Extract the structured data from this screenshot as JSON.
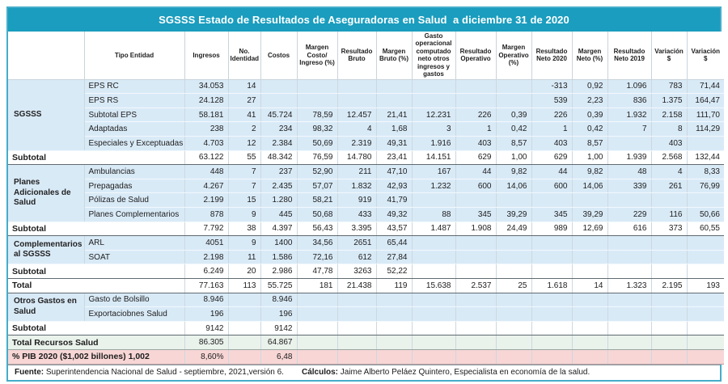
{
  "title": "SGSSS Estado de Resultados de Aseguradoras en Salud  a diciembre 31 de 2020",
  "columns": [
    "",
    "Tipo Entidad",
    "Ingresos",
    "No. Identidad",
    "Costos",
    "Margen Costo/ Ingreso (%)",
    "Resultado Bruto",
    "Margen Bruto (%)",
    "Gasto operacional computado neto otros ingresos y gastos",
    "Resultado Operativo",
    "Margen Operativo (%)",
    "Resultado Neto 2020",
    "Margen Neto (%)",
    "Resultado Neto 2019",
    "Variación $",
    "Variación $"
  ],
  "rows": [
    {
      "type": "data",
      "group": {
        "label": "SGSSS",
        "span": 5
      },
      "label": "EPS RC",
      "values": [
        "34.053",
        "14",
        "",
        "",
        "",
        "",
        "",
        "",
        "",
        "-313",
        "0,92",
        "1.096",
        "783",
        "71,44"
      ]
    },
    {
      "type": "data",
      "label": "EPS RS",
      "values": [
        "24.128",
        "27",
        "",
        "",
        "",
        "",
        "",
        "",
        "",
        "539",
        "2,23",
        "836",
        "1.375",
        "164,47"
      ]
    },
    {
      "type": "data",
      "label": "Subtotal EPS",
      "values": [
        "58.181",
        "41",
        "45.724",
        "78,59",
        "12.457",
        "21,41",
        "12.231",
        "226",
        "0,39",
        "226",
        "0,39",
        "1.932",
        "2.158",
        "111,70"
      ]
    },
    {
      "type": "data",
      "label": "Adaptadas",
      "values": [
        "238",
        "2",
        "234",
        "98,32",
        "4",
        "1,68",
        "3",
        "1",
        "0,42",
        "1",
        "0,42",
        "7",
        "8",
        "114,29"
      ]
    },
    {
      "type": "data",
      "label": "Especiales y Exceptuadas",
      "values": [
        "4.703",
        "12",
        "2.384",
        "50,69",
        "2.319",
        "49,31",
        "1.916",
        "403",
        "8,57",
        "403",
        "8,57",
        "",
        "403",
        ""
      ]
    },
    {
      "type": "section",
      "label": "Subtotal",
      "values": [
        "63.122",
        "55",
        "48.342",
        "76,59",
        "14.780",
        "23,41",
        "14.151",
        "629",
        "1,00",
        "629",
        "1,00",
        "1.939",
        "2.568",
        "132,44"
      ]
    },
    {
      "type": "data",
      "group": {
        "label": "Planes Adicionales de  Salud",
        "span": 4
      },
      "label": "Ambulancias",
      "values": [
        "448",
        "7",
        "237",
        "52,90",
        "211",
        "47,10",
        "167",
        "44",
        "9,82",
        "44",
        "9,82",
        "48",
        "4",
        "8,33"
      ]
    },
    {
      "type": "data",
      "label": "Prepagadas",
      "values": [
        "4.267",
        "7",
        "2.435",
        "57,07",
        "1.832",
        "42,93",
        "1.232",
        "600",
        "14,06",
        "600",
        "14,06",
        "339",
        "261",
        "76,99"
      ]
    },
    {
      "type": "data",
      "label": "Pólizas de Salud",
      "values": [
        "2.199",
        "15",
        "1.280",
        "58,21",
        "919",
        "41,79",
        "",
        "",
        "",
        "",
        "",
        "",
        "",
        ""
      ]
    },
    {
      "type": "data",
      "label": "Planes Complementarios",
      "values": [
        "878",
        "9",
        "445",
        "50,68",
        "433",
        "49,32",
        "88",
        "345",
        "39,29",
        "345",
        "39,29",
        "229",
        "116",
        "50,66"
      ]
    },
    {
      "type": "section",
      "label": "Subtotal",
      "values": [
        "7.792",
        "38",
        "4.397",
        "56,43",
        "3.395",
        "43,57",
        "1.487",
        "1.908",
        "24,49",
        "989",
        "12,69",
        "616",
        "373",
        "60,55"
      ]
    },
    {
      "type": "data",
      "group": {
        "label": "Complementarios al SGSSS",
        "span": 2
      },
      "label": "ARL",
      "values": [
        "4051",
        "9",
        "1400",
        "34,56",
        "2651",
        "65,44",
        "",
        "",
        "",
        "",
        "",
        "",
        "",
        ""
      ]
    },
    {
      "type": "data",
      "label": "SOAT",
      "values": [
        "2.198",
        "11",
        "1.586",
        "72,16",
        "612",
        "27,84",
        "",
        "",
        "",
        "",
        "",
        "",
        "",
        ""
      ]
    },
    {
      "type": "section",
      "label": "Subtotal",
      "values": [
        "6.249",
        "20",
        "2.986",
        "47,78",
        "3263",
        "52,22",
        "",
        "",
        "",
        "",
        "",
        "",
        "",
        ""
      ]
    },
    {
      "type": "section",
      "label": "Total",
      "values": [
        "77.163",
        "113",
        "55.725",
        "181",
        "21.438",
        "119",
        "15.638",
        "2.537",
        "25",
        "1.618",
        "14",
        "1.323",
        "2.195",
        "193"
      ]
    },
    {
      "type": "data",
      "group": {
        "label": "Otros Gastos en Salud",
        "span": 2
      },
      "label": "Gasto de Bolsillo",
      "values": [
        "8.946",
        "",
        "8.946",
        "",
        "",
        "",
        "",
        "",
        "",
        "",
        "",
        "",
        "",
        ""
      ]
    },
    {
      "type": "data",
      "label": "Exportaciobnes Salud",
      "values": [
        "196",
        "",
        "196",
        "",
        "",
        "",
        "",
        "",
        "",
        "",
        "",
        "",
        "",
        ""
      ]
    },
    {
      "type": "section",
      "label": "Subtotal",
      "values": [
        "9142",
        "",
        "9142",
        "",
        "",
        "",
        "",
        "",
        "",
        "",
        "",
        "",
        "",
        ""
      ]
    },
    {
      "type": "green",
      "label": "Total Recursos Salud",
      "values": [
        "86.305",
        "",
        "64.867",
        "",
        "",
        "",
        "",
        "",
        "",
        "",
        "",
        "",
        "",
        ""
      ]
    },
    {
      "type": "pink",
      "label": "% PIB 2020 ($1,002 billones) 1,002",
      "values": [
        "8,60%",
        "",
        "6,48",
        "",
        "",
        "",
        "",
        "",
        "",
        "",
        "",
        "",
        "",
        ""
      ]
    }
  ],
  "footer": {
    "fuente_label": "Fuente:",
    "fuente_text": " Superintendencia Nacional de Salud - septiembre, 2021,versión 6.",
    "calculos_label": "Cálculos:",
    "calculos_text": " Jaime Alberto Peláez Quintero, Especialista en economía de la salud."
  },
  "colors": {
    "accent_teal": "#1a9dbe",
    "frame_border": "#45adca",
    "row_blue": "#d9eaf7",
    "row_green": "#eaf2ec",
    "row_pink": "#f8d6d6"
  }
}
